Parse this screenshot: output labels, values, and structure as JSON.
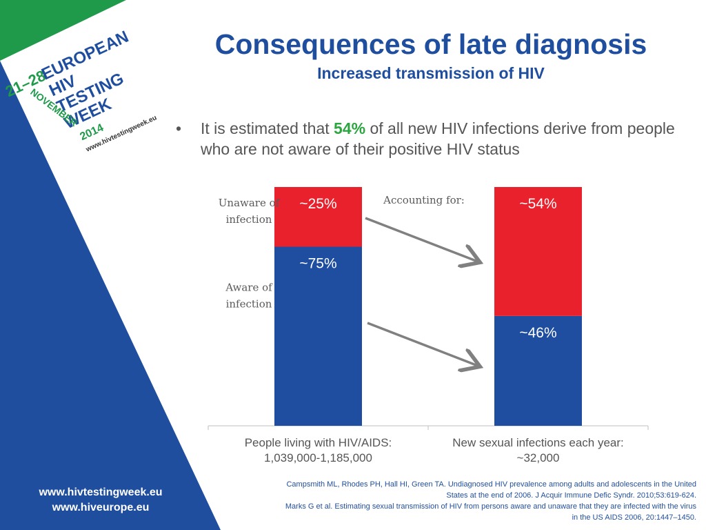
{
  "slide": {
    "title": "Consequences of late diagnosis",
    "subtitle": "Increased transmission of HIV",
    "bullet": {
      "marker": "•",
      "before": "It is estimated that ",
      "highlight": "54%",
      "after": " of all new HIV infections derive from people who are not aware of their positive HIV status"
    },
    "badge": {
      "dates": "21–28",
      "month": "NOVEMBER",
      "year": "2014",
      "line1": "EUROPEAN",
      "line2": "HIV",
      "line3": "TESTING",
      "line4": "WEEK",
      "url": "www.hivtestingweek.eu"
    },
    "footer_urls": [
      "www.hivtestingweek.eu",
      "www.hiveurope.eu"
    ],
    "references": [
      "Campsmith ML, Rhodes PH, Hall HI, Green TA. Undiagnosed HIV prevalence among adults and adolescents in the United",
      "States at the end of 2006. J Acquir Immune Defic Syndr. 2010;53:619-624.",
      "Marks G et al. Estimating sexual transmission of HIV from persons aware and unaware that they are infected with the virus",
      "in the US AIDS 2006, 20:1447–1450."
    ],
    "colors": {
      "title_blue": "#1f4e9f",
      "side_blue": "#1f4e9f",
      "side_green": "#1f9a4a",
      "bar_blue": "#1f4ea0",
      "bar_red": "#e8212d",
      "highlight_green": "#2aa63e"
    }
  },
  "chart_data": {
    "type": "bar",
    "stacked": true,
    "categories": [
      [
        "People living with HIV/AIDS:",
        "1,039,000-1,185,000"
      ],
      [
        "New sexual infections each year:",
        "~32,000"
      ]
    ],
    "series": [
      {
        "name": "Aware of infection",
        "values": [
          75,
          46
        ],
        "labels": [
          "~75%",
          "~46%"
        ],
        "color": "#1f4ea0"
      },
      {
        "name": "Unaware of infection",
        "values": [
          25,
          54
        ],
        "labels": [
          "~25%",
          "~54%"
        ],
        "color": "#e8212d"
      }
    ],
    "ylim": [
      0,
      100
    ],
    "legend_labels": [
      [
        "Unaware of",
        "infection"
      ],
      [
        "Aware of",
        "infection"
      ]
    ],
    "annotation": "Accounting for:",
    "grid": false
  }
}
